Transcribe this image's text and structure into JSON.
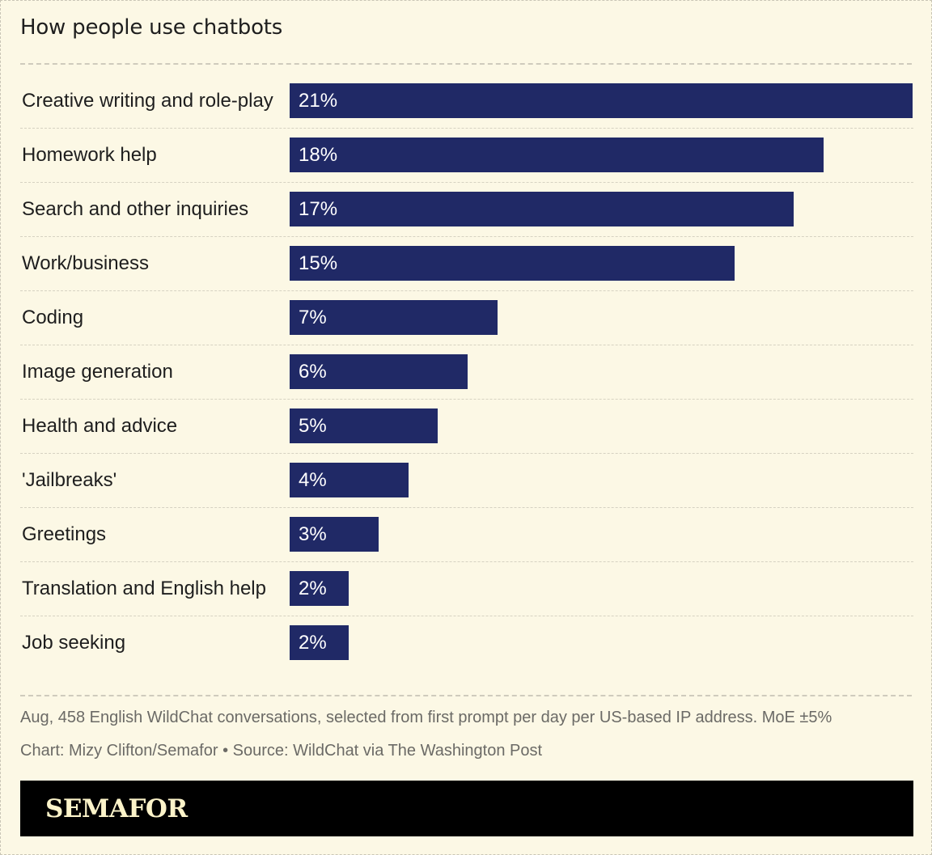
{
  "header": {
    "title": "How people use chatbots"
  },
  "chart_data": {
    "type": "bar",
    "orientation": "horizontal",
    "title": "How people use chatbots",
    "categories": [
      "Creative writing and role-play",
      "Homework help",
      "Search and other inquiries",
      "Work/business",
      "Coding",
      "Image generation",
      "Health and advice",
      "'Jailbreaks'",
      "Greetings",
      "Translation and English help",
      "Job seeking"
    ],
    "values": [
      21,
      18,
      17,
      15,
      7,
      6,
      5,
      4,
      3,
      2,
      2
    ],
    "value_labels": [
      "21%",
      "18%",
      "17%",
      "15%",
      "7%",
      "6%",
      "5%",
      "4%",
      "3%",
      "2%",
      "2%"
    ],
    "unit": "%",
    "xlim": [
      0,
      21
    ],
    "grid": false,
    "bar_color": "#202966"
  },
  "footer": {
    "note": "Aug, 458 English WildChat conversations, selected from first prompt per day per US-based IP address. MoE ±5%",
    "credit": "Chart: Mizy Clifton/Semafor • Source: WildChat via The Washington Post",
    "brand": "SEMAFOR"
  },
  "colors": {
    "background": "#fcf8e5",
    "bar": "#202966",
    "brand_bar": "#000000",
    "brand_text": "#fbf3c9"
  }
}
